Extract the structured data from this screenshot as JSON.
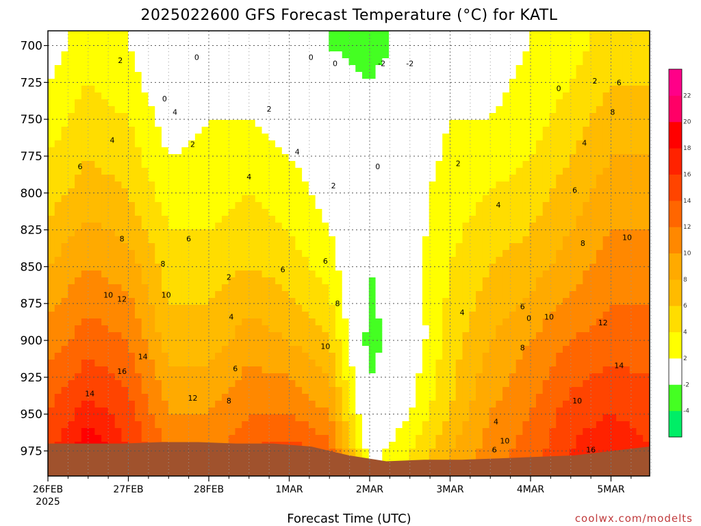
{
  "chart_data": {
    "type": "heatmap",
    "title": "2025022600 GFS Forecast Temperature (°C) for KATL",
    "xlabel": "Forecast Time (UTC)",
    "ylabel": "",
    "x_ticks": [
      "26FEB",
      "27FEB",
      "28FEB",
      "1MAR",
      "2MAR",
      "3MAR",
      "4MAR",
      "5MAR"
    ],
    "x_year": "2025",
    "y_ticks": [
      700,
      725,
      750,
      775,
      800,
      825,
      850,
      875,
      900,
      925,
      950,
      975
    ],
    "ylim": [
      690,
      992
    ],
    "xlim_days": [
      0,
      7.5
    ],
    "grid": true,
    "colorbar": {
      "levels": [
        -6,
        -4,
        -2,
        2,
        4,
        6,
        8,
        10,
        12,
        14,
        16,
        18,
        20,
        22,
        24
      ],
      "labels": [
        "-4",
        "-2",
        "2",
        "4",
        "6",
        "8",
        "10",
        "12",
        "14",
        "16",
        "18",
        "20",
        "22"
      ],
      "colors": [
        "#00ee66",
        "#44ff22",
        "#ffffff",
        "#ffff00",
        "#ffdd00",
        "#ffbb00",
        "#ffaa00",
        "#ff8800",
        "#ff6600",
        "#ff4400",
        "#ff2200",
        "#ff0000",
        "#ff0066",
        "#ff0088"
      ]
    },
    "surface": {
      "color": "#a0522d",
      "pressure_mb": [
        970,
        970,
        970,
        969,
        969,
        970,
        970,
        972,
        978,
        982,
        981,
        981,
        980,
        979,
        978,
        975,
        972
      ]
    },
    "profiles_time_days": [
      0,
      0.5,
      1.0,
      1.5,
      2.0,
      2.5,
      3.0,
      3.5,
      4.0,
      4.5,
      5.0,
      5.5,
      6.0,
      6.5,
      7.0,
      7.5
    ],
    "profiles_pressure_mb": [
      700,
      750,
      800,
      850,
      900,
      950,
      975
    ],
    "temperature_c": [
      [
        1,
        3,
        5,
        8,
        11,
        14,
        15
      ],
      [
        3,
        5,
        7,
        10,
        13,
        17,
        20
      ],
      [
        2,
        4,
        6,
        9,
        12,
        15,
        16
      ],
      [
        -1,
        1,
        3,
        5,
        7,
        10,
        12
      ],
      [
        0,
        2,
        3,
        5,
        7,
        10,
        11
      ],
      [
        -1,
        2,
        4,
        6,
        9,
        12,
        14
      ],
      [
        -1,
        1,
        3,
        5,
        8,
        12,
        15
      ],
      [
        -2,
        0,
        1,
        3,
        6,
        10,
        13
      ],
      [
        -3,
        -1,
        0,
        -2,
        -3,
        -1,
        1
      ],
      [
        -1,
        0,
        1,
        1,
        0,
        2,
        4
      ],
      [
        0,
        2,
        3,
        4,
        5,
        6,
        8
      ],
      [
        1,
        2,
        4,
        6,
        8,
        10,
        11
      ],
      [
        2,
        3,
        5,
        7,
        10,
        12,
        13
      ],
      [
        3,
        5,
        7,
        9,
        12,
        15,
        16
      ],
      [
        5,
        7,
        9,
        11,
        13,
        16,
        18
      ],
      [
        5,
        7,
        9,
        11,
        13,
        15,
        16
      ]
    ],
    "contour_labels": [
      {
        "text": "0",
        "day": 1.85,
        "p": 708
      },
      {
        "text": "0",
        "day": 3.27,
        "p": 708
      },
      {
        "text": "0",
        "day": 3.57,
        "p": 712
      },
      {
        "text": "0",
        "day": 4.1,
        "p": 782
      },
      {
        "text": "0",
        "day": 5.98,
        "p": 885
      },
      {
        "text": "0",
        "day": 6.35,
        "p": 729
      },
      {
        "text": "0",
        "day": 1.45,
        "p": 736
      },
      {
        "text": "-2",
        "day": 4.15,
        "p": 712
      },
      {
        "text": "-2",
        "day": 4.5,
        "p": 712
      },
      {
        "text": "2",
        "day": 0.9,
        "p": 710
      },
      {
        "text": "2",
        "day": 1.8,
        "p": 767
      },
      {
        "text": "2",
        "day": 2.75,
        "p": 743
      },
      {
        "text": "2",
        "day": 3.55,
        "p": 795
      },
      {
        "text": "2",
        "day": 5.1,
        "p": 780
      },
      {
        "text": "2",
        "day": 6.8,
        "p": 724
      },
      {
        "text": "2",
        "day": 2.25,
        "p": 857
      },
      {
        "text": "4",
        "day": 0.8,
        "p": 764
      },
      {
        "text": "4",
        "day": 1.58,
        "p": 745
      },
      {
        "text": "4",
        "day": 2.5,
        "p": 789
      },
      {
        "text": "4",
        "day": 3.1,
        "p": 772
      },
      {
        "text": "4",
        "day": 5.15,
        "p": 881
      },
      {
        "text": "4",
        "day": 5.6,
        "p": 808
      },
      {
        "text": "4",
        "day": 6.67,
        "p": 766
      },
      {
        "text": "4",
        "day": 2.28,
        "p": 884
      },
      {
        "text": "4",
        "day": 5.57,
        "p": 955
      },
      {
        "text": "6",
        "day": 0.4,
        "p": 782
      },
      {
        "text": "6",
        "day": 1.75,
        "p": 831
      },
      {
        "text": "6",
        "day": 2.33,
        "p": 919
      },
      {
        "text": "6",
        "day": 2.92,
        "p": 852
      },
      {
        "text": "6",
        "day": 3.45,
        "p": 846
      },
      {
        "text": "6",
        "day": 6.55,
        "p": 798
      },
      {
        "text": "6",
        "day": 7.1,
        "p": 725
      },
      {
        "text": "6",
        "day": 5.9,
        "p": 877
      },
      {
        "text": "6",
        "day": 5.55,
        "p": 974
      },
      {
        "text": "8",
        "day": 0.92,
        "p": 831
      },
      {
        "text": "8",
        "day": 1.43,
        "p": 848
      },
      {
        "text": "8",
        "day": 2.25,
        "p": 941
      },
      {
        "text": "8",
        "day": 3.6,
        "p": 875
      },
      {
        "text": "8",
        "day": 6.65,
        "p": 834
      },
      {
        "text": "8",
        "day": 7.02,
        "p": 745
      },
      {
        "text": "8",
        "day": 5.9,
        "p": 905
      },
      {
        "text": "10",
        "day": 0.75,
        "p": 869
      },
      {
        "text": "10",
        "day": 1.47,
        "p": 869
      },
      {
        "text": "10",
        "day": 3.45,
        "p": 904
      },
      {
        "text": "10",
        "day": 6.23,
        "p": 884
      },
      {
        "text": "10",
        "day": 6.58,
        "p": 941
      },
      {
        "text": "10",
        "day": 7.2,
        "p": 830
      },
      {
        "text": "10",
        "day": 5.68,
        "p": 968
      },
      {
        "text": "12",
        "day": 0.92,
        "p": 872
      },
      {
        "text": "12",
        "day": 1.8,
        "p": 939
      },
      {
        "text": "12",
        "day": 6.9,
        "p": 888
      },
      {
        "text": "14",
        "day": 0.52,
        "p": 936
      },
      {
        "text": "14",
        "day": 1.18,
        "p": 911
      },
      {
        "text": "14",
        "day": 7.1,
        "p": 917
      },
      {
        "text": "16",
        "day": 0.92,
        "p": 921
      },
      {
        "text": "16",
        "day": 6.75,
        "p": 974
      }
    ]
  },
  "credit": "coolwx.com/modelts"
}
